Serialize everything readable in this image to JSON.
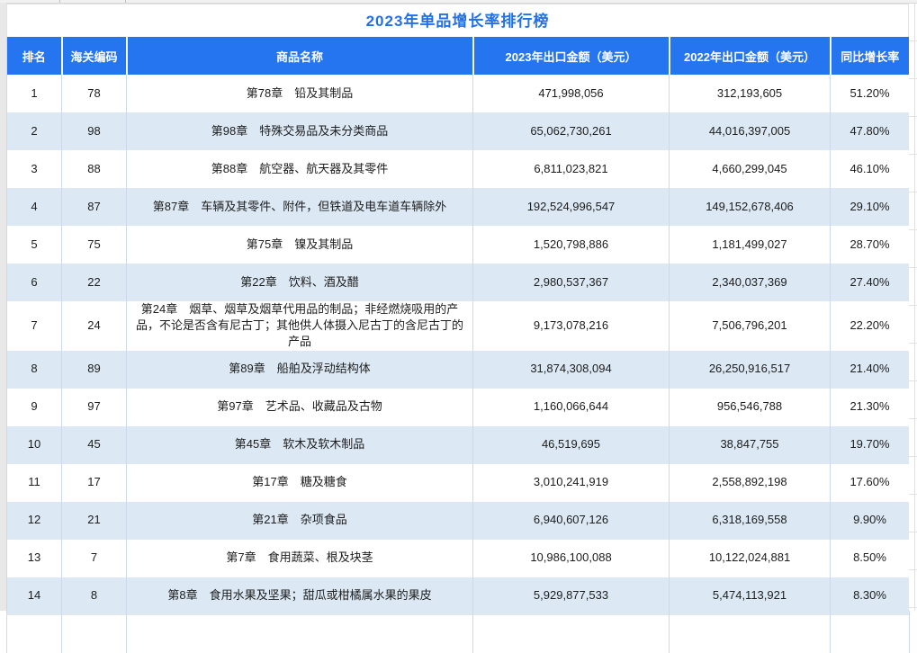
{
  "title": "2023年单品增长率排行榜",
  "colors": {
    "header_bg": "#2574F0",
    "title_text": "#2170E8",
    "alt_row_bg": "#DCE9F5",
    "selected_marker_green": "#3E9B3E",
    "cell_border": "#CBD9EA"
  },
  "table": {
    "selected_row_rank": "4",
    "columns": [
      "排名",
      "海关编码",
      "商品名称",
      "2023年出口金额（美元）",
      "2022年出口金额（美元）",
      "同比增长率"
    ],
    "rows": [
      {
        "rank": "1",
        "code": "78",
        "name": "第78章　铅及其制品",
        "amount_2023": "471,998,056",
        "amount_2022": "312,193,605",
        "growth": "51.20%"
      },
      {
        "rank": "2",
        "code": "98",
        "name": "第98章　特殊交易品及未分类商品",
        "amount_2023": "65,062,730,261",
        "amount_2022": "44,016,397,005",
        "growth": "47.80%"
      },
      {
        "rank": "3",
        "code": "88",
        "name": "第88章　航空器、航天器及其零件",
        "amount_2023": "6,811,023,821",
        "amount_2022": "4,660,299,045",
        "growth": "46.10%"
      },
      {
        "rank": "4",
        "code": "87",
        "name": "第87章　车辆及其零件、附件，但铁道及电车道车辆除外",
        "amount_2023": "192,524,996,547",
        "amount_2022": "149,152,678,406",
        "growth": "29.10%"
      },
      {
        "rank": "5",
        "code": "75",
        "name": "第75章　镍及其制品",
        "amount_2023": "1,520,798,886",
        "amount_2022": "1,181,499,027",
        "growth": "28.70%"
      },
      {
        "rank": "6",
        "code": "22",
        "name": "第22章　饮料、酒及醋",
        "amount_2023": "2,980,537,367",
        "amount_2022": "2,340,037,369",
        "growth": "27.40%"
      },
      {
        "rank": "7",
        "code": "24",
        "name": "第24章　烟草、烟草及烟草代用品的制品；非经燃烧吸用的产品，不论是否含有尼古丁；其他供人体摄入尼古丁的含尼古丁的产品",
        "amount_2023": "9,173,078,216",
        "amount_2022": "7,506,796,201",
        "growth": "22.20%"
      },
      {
        "rank": "8",
        "code": "89",
        "name": "第89章　船舶及浮动结构体",
        "amount_2023": "31,874,308,094",
        "amount_2022": "26,250,916,517",
        "growth": "21.40%"
      },
      {
        "rank": "9",
        "code": "97",
        "name": "第97章　艺术品、收藏品及古物",
        "amount_2023": "1,160,066,644",
        "amount_2022": "956,546,788",
        "growth": "21.30%"
      },
      {
        "rank": "10",
        "code": "45",
        "name": "第45章　软木及软木制品",
        "amount_2023": "46,519,695",
        "amount_2022": "38,847,755",
        "growth": "19.70%"
      },
      {
        "rank": "11",
        "code": "17",
        "name": "第17章　糖及糖食",
        "amount_2023": "3,010,241,919",
        "amount_2022": "2,558,892,198",
        "growth": "17.60%"
      },
      {
        "rank": "12",
        "code": "21",
        "name": "第21章　杂项食品",
        "amount_2023": "6,940,607,126",
        "amount_2022": "6,318,169,558",
        "growth": "9.90%"
      },
      {
        "rank": "13",
        "code": "7",
        "name": "第7章　食用蔬菜、根及块茎",
        "amount_2023": "10,986,100,088",
        "amount_2022": "10,122,024,881",
        "growth": "8.50%"
      },
      {
        "rank": "14",
        "code": "8",
        "name": "第8章　食用水果及坚果；甜瓜或柑橘属水果的果皮",
        "amount_2023": "5,929,877,533",
        "amount_2022": "5,474,113,921",
        "growth": "8.30%"
      }
    ]
  }
}
